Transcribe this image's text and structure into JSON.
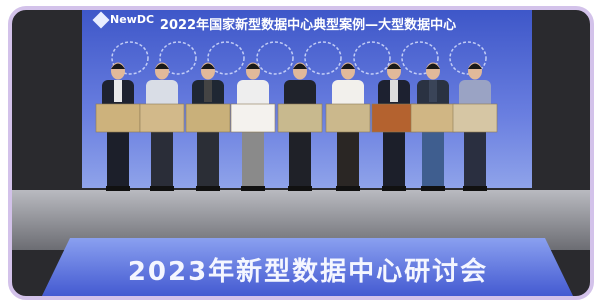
{
  "logo": {
    "name": "NewDC"
  },
  "backdrop": {
    "title": "2022年国家新型数据中心典型案例—大型数据中心"
  },
  "banner": {
    "text": "2023年新型数据中心研讨会"
  }
}
